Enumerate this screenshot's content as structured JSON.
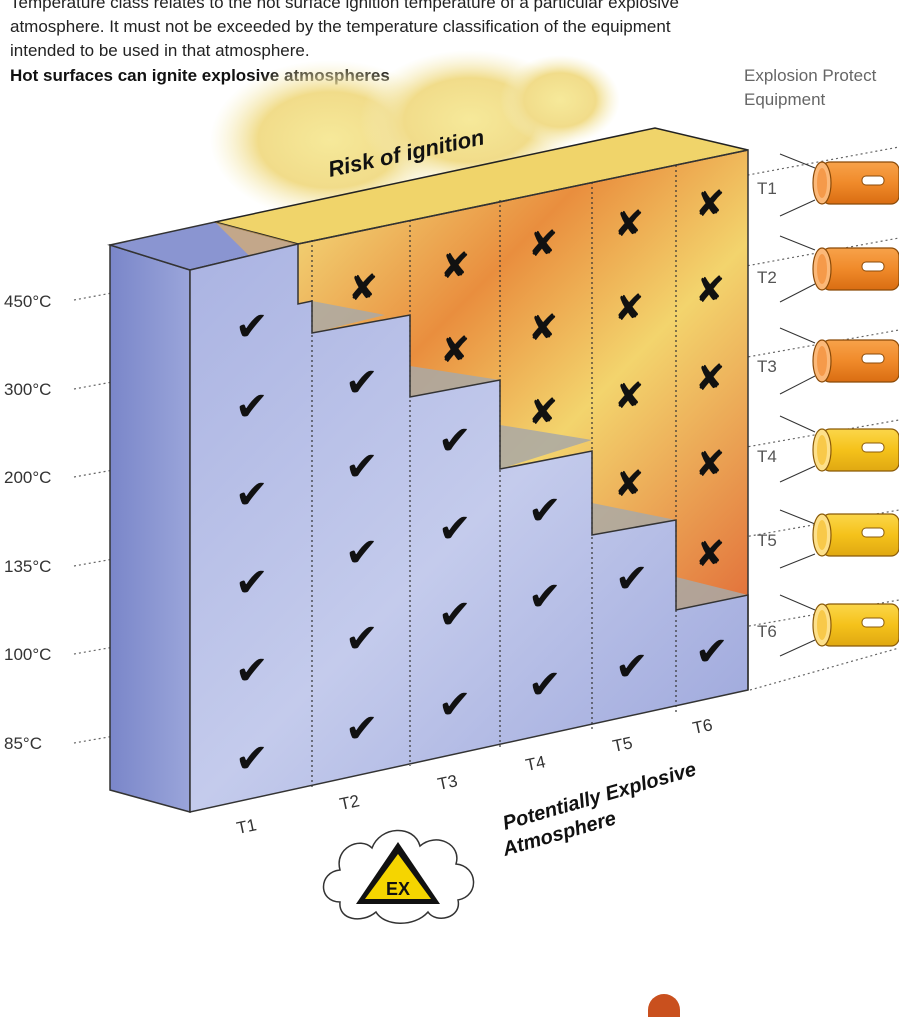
{
  "intro": {
    "line1": "Temperature class relates to the hot surface ignition temperature of a particular explosive",
    "line2": "atmosphere. It must not be exceeded by the temperature classification of the equipment",
    "line3": "intended to be used in that atmosphere."
  },
  "headline": "Hot surfaces can ignite explosive atmospheres",
  "equipment_title": {
    "line1": "Explosion Protect",
    "line2": "Equipment"
  },
  "risk_label": "Risk of ignition",
  "atmosphere_label": {
    "line1": "Potentially Explosive",
    "line2": "Atmosphere"
  },
  "ex_symbol": "EX",
  "temperatures": [
    "450°C",
    "300°C",
    "200°C",
    "135°C",
    "100°C",
    "85°C"
  ],
  "atmosphere_classes": [
    "T1",
    "T2",
    "T3",
    "T4",
    "T5",
    "T6"
  ],
  "equipment_classes": [
    "T1",
    "T2",
    "T3",
    "T4",
    "T5",
    "T6"
  ],
  "marks": {
    "ok": "✔",
    "ignite": "✘"
  },
  "colors": {
    "safe_blue": "#8f9ad6",
    "flame_orange": "#e8742a",
    "flame_yellow": "#f2e37a",
    "device_orange": "#f08a2a",
    "device_yellow": "#f5c21a",
    "ex_yellow": "#f5d500"
  }
}
